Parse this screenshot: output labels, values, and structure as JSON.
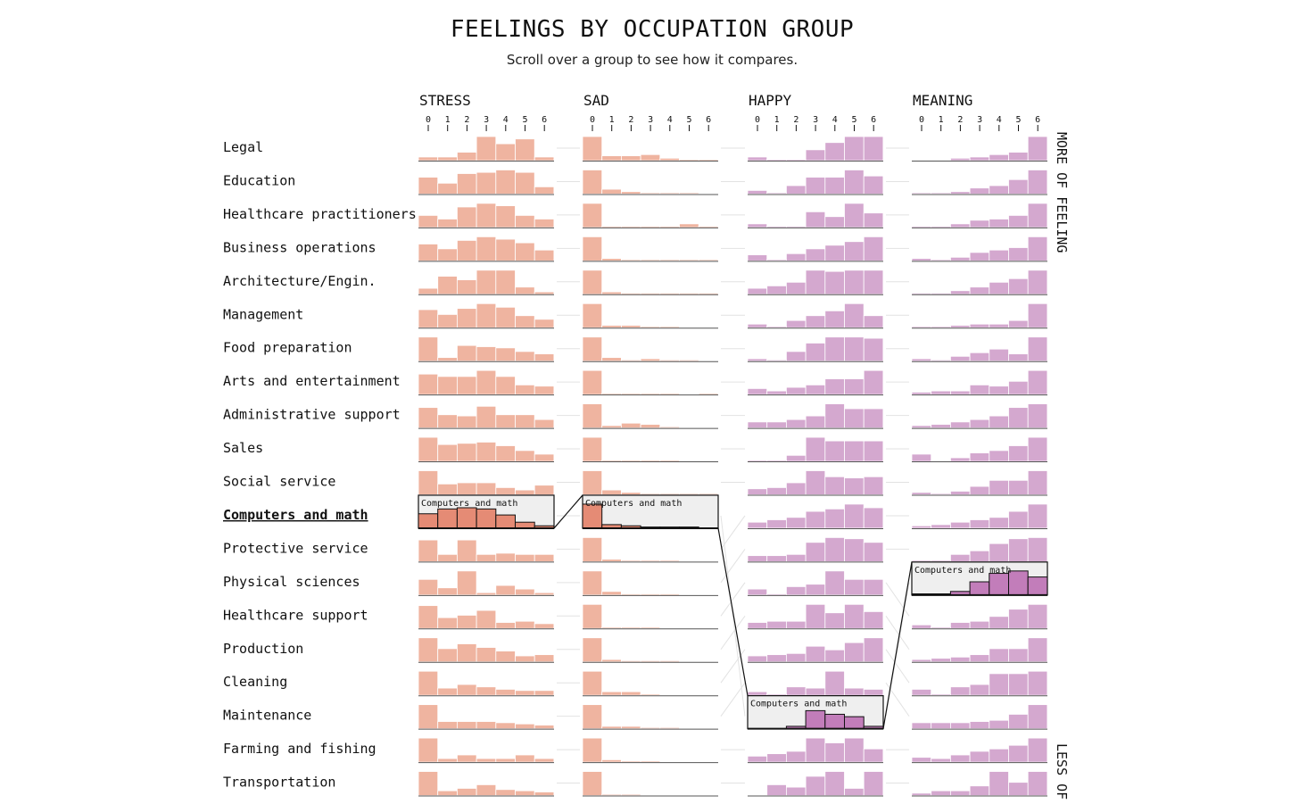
{
  "header": {
    "title": "FEELINGS BY OCCUPATION GROUP",
    "subtitle": "Scroll over a group to see how it compares."
  },
  "side_labels": {
    "top": "MORE OF FEELING",
    "bottom": "LESS OF"
  },
  "highlight": {
    "group": "Computers and math"
  },
  "colors": {
    "stress": "#efb4a0",
    "sad": "#efb4a0",
    "happy": "#d4a8cf",
    "meaning": "#d4a8cf",
    "stress_highlight": "#e58b75",
    "sad_highlight": "#e58b75",
    "happy_highlight": "#c27dba",
    "meaning_highlight": "#c27dba",
    "highlight_bg": "#efefef"
  },
  "chart_data": {
    "type": "bar",
    "x": [
      0,
      1,
      2,
      3,
      4,
      5,
      6
    ],
    "categories": [
      "Legal",
      "Education",
      "Healthcare practitioners",
      "Business operations",
      "Architecture/Engin.",
      "Management",
      "Food preparation",
      "Arts and entertainment",
      "Administrative support",
      "Sales",
      "Social service",
      "Computers and math",
      "Protective service",
      "Physical sciences",
      "Healthcare support",
      "Production",
      "Cleaning",
      "Maintenance",
      "Farming and fishing",
      "Transportation"
    ],
    "series": [
      {
        "name": "STRESS",
        "rank_order": [
          "Legal",
          "Education",
          "Healthcare practitioners",
          "Business operations",
          "Architecture/Engin.",
          "Management",
          "Food preparation",
          "Arts and entertainment",
          "Administrative support",
          "Sales",
          "Social service",
          "Computers and math",
          "Protective service",
          "Physical sciences",
          "Healthcare support",
          "Production",
          "Cleaning",
          "Maintenance",
          "Farming and fishing",
          "Transportation"
        ],
        "values": [
          [
            0.15,
            0.15,
            0.35,
            1.0,
            0.7,
            0.9,
            0.15
          ],
          [
            0.7,
            0.45,
            0.85,
            0.9,
            1.0,
            0.9,
            0.3
          ],
          [
            0.5,
            0.35,
            0.85,
            1.0,
            0.9,
            0.5,
            0.35
          ],
          [
            0.7,
            0.5,
            0.85,
            1.0,
            0.9,
            0.75,
            0.45
          ],
          [
            0.25,
            0.75,
            0.6,
            1.0,
            1.0,
            0.3,
            0.1
          ],
          [
            0.75,
            0.55,
            0.8,
            1.0,
            0.85,
            0.5,
            0.35
          ],
          [
            1.0,
            0.15,
            0.65,
            0.6,
            0.55,
            0.4,
            0.3
          ],
          [
            0.85,
            0.75,
            0.75,
            1.0,
            0.75,
            0.4,
            0.35
          ],
          [
            0.85,
            0.55,
            0.5,
            0.9,
            0.55,
            0.55,
            0.35
          ],
          [
            1.0,
            0.7,
            0.75,
            0.8,
            0.65,
            0.45,
            0.3
          ],
          [
            1.0,
            0.45,
            0.5,
            0.5,
            0.3,
            0.2,
            0.4
          ],
          [
            0.6,
            0.8,
            0.85,
            0.8,
            0.55,
            0.25,
            0.1
          ],
          [
            0.9,
            0.3,
            0.9,
            0.3,
            0.35,
            0.3,
            0.3
          ],
          [
            0.65,
            0.3,
            1.0,
            0.1,
            0.4,
            0.25,
            0.1
          ],
          [
            0.95,
            0.45,
            0.55,
            0.75,
            0.25,
            0.3,
            0.2
          ],
          [
            1.0,
            0.55,
            0.75,
            0.6,
            0.45,
            0.25,
            0.3
          ],
          [
            1.0,
            0.3,
            0.45,
            0.35,
            0.25,
            0.2,
            0.2
          ],
          [
            1.0,
            0.3,
            0.3,
            0.3,
            0.25,
            0.2,
            0.15
          ],
          [
            1.0,
            0.15,
            0.3,
            0.15,
            0.15,
            0.3,
            0.15
          ],
          [
            1.0,
            0.2,
            0.3,
            0.45,
            0.25,
            0.2,
            0.15
          ]
        ]
      },
      {
        "name": "SAD",
        "rank_order": [
          "Legal",
          "Education",
          "Healthcare practitioners",
          "Business operations",
          "Architecture/Engin.",
          "Management",
          "Food preparation",
          "Arts and entertainment",
          "Administrative support",
          "Sales",
          "Social service",
          "Computers and math",
          "Protective service",
          "Physical sciences",
          "Healthcare support",
          "Production",
          "Cleaning",
          "Maintenance",
          "Farming and fishing",
          "Transportation"
        ],
        "values": [
          [
            1.0,
            0.2,
            0.2,
            0.25,
            0.1,
            0.05,
            0.05
          ],
          [
            1.0,
            0.2,
            0.1,
            0.05,
            0.05,
            0.05,
            0.0
          ],
          [
            1.0,
            0.05,
            0.05,
            0.05,
            0.05,
            0.15,
            0.05
          ],
          [
            1.0,
            0.1,
            0.05,
            0.05,
            0.05,
            0.05,
            0.05
          ],
          [
            1.0,
            0.1,
            0.05,
            0.05,
            0.05,
            0.05,
            0.05
          ],
          [
            1.0,
            0.1,
            0.1,
            0.05,
            0.05,
            0.0,
            0.0
          ],
          [
            1.0,
            0.15,
            0.05,
            0.1,
            0.05,
            0.05,
            0.0
          ],
          [
            1.0,
            0.05,
            0.05,
            0.05,
            0.05,
            0.0,
            0.05
          ],
          [
            1.0,
            0.1,
            0.2,
            0.15,
            0.05,
            0.0,
            0.0
          ],
          [
            1.0,
            0.05,
            0.05,
            0.05,
            0.05,
            0.0,
            0.0
          ],
          [
            1.0,
            0.2,
            0.1,
            0.05,
            0.05,
            0.05,
            0.05
          ],
          [
            1.0,
            0.15,
            0.1,
            0.05,
            0.05,
            0.05,
            0.0
          ],
          [
            1.0,
            0.1,
            0.05,
            0.05,
            0.05,
            0.0,
            0.0
          ],
          [
            1.0,
            0.15,
            0.05,
            0.05,
            0.05,
            0.0,
            0.0
          ],
          [
            1.0,
            0.05,
            0.05,
            0.05,
            0.0,
            0.0,
            0.0
          ],
          [
            1.0,
            0.1,
            0.05,
            0.05,
            0.05,
            0.0,
            0.0
          ],
          [
            1.0,
            0.15,
            0.15,
            0.05,
            0.0,
            0.0,
            0.0
          ],
          [
            1.0,
            0.1,
            0.1,
            0.05,
            0.05,
            0.0,
            0.0
          ],
          [
            1.0,
            0.1,
            0.05,
            0.05,
            0.0,
            0.0,
            0.0
          ],
          [
            1.0,
            0.05,
            0.05,
            0.0,
            0.0,
            0.0,
            0.0
          ]
        ]
      },
      {
        "name": "HAPPY",
        "rank_order": [
          "Legal",
          "Education",
          "Healthcare practitioners",
          "Business operations",
          "Architecture/Engin.",
          "Management",
          "Food preparation",
          "Arts and entertainment",
          "Administrative support",
          "Sales",
          "Social service",
          "Protective service",
          "Physical sciences",
          "Healthcare support",
          "Production",
          "Cleaning",
          "Maintenance",
          "Computers and math",
          "Farming and fishing",
          "Transportation"
        ],
        "values": [
          [
            0.15,
            0.05,
            0.05,
            0.45,
            0.75,
            1.0,
            1.0
          ],
          [
            0.15,
            0.05,
            0.35,
            0.7,
            0.7,
            1.0,
            0.75
          ],
          [
            0.15,
            0.05,
            0.05,
            0.65,
            0.45,
            1.0,
            0.6
          ],
          [
            0.25,
            0.05,
            0.3,
            0.5,
            0.65,
            0.8,
            1.0
          ],
          [
            0.25,
            0.35,
            0.5,
            1.0,
            0.95,
            1.0,
            1.0
          ],
          [
            0.15,
            0.05,
            0.3,
            0.5,
            0.7,
            1.0,
            0.5
          ],
          [
            0.1,
            0.05,
            0.4,
            0.75,
            1.0,
            1.0,
            0.95
          ],
          [
            0.25,
            0.15,
            0.3,
            0.4,
            0.65,
            0.65,
            1.0
          ],
          [
            0.25,
            0.25,
            0.35,
            0.5,
            1.0,
            0.8,
            0.8
          ],
          [
            0.05,
            0.05,
            0.25,
            1.0,
            0.85,
            0.85,
            0.85
          ],
          [
            0.25,
            0.3,
            0.5,
            1.0,
            0.75,
            0.7,
            0.75
          ],
          [
            0.25,
            0.35,
            0.45,
            0.7,
            0.8,
            1.0,
            0.85
          ],
          [
            0.25,
            0.25,
            0.3,
            0.8,
            1.0,
            0.95,
            0.8
          ],
          [
            0.25,
            0.05,
            0.35,
            0.45,
            1.0,
            0.65,
            0.65
          ],
          [
            0.25,
            0.3,
            0.3,
            1.0,
            0.65,
            1.0,
            0.7
          ],
          [
            0.25,
            0.3,
            0.35,
            0.65,
            0.5,
            0.8,
            1.0
          ],
          [
            0.15,
            0.05,
            0.35,
            0.3,
            1.0,
            0.3,
            0.25
          ],
          [
            0.0,
            0.0,
            0.1,
            0.75,
            0.6,
            0.5,
            0.1
          ],
          [
            0.25,
            0.35,
            0.45,
            1.0,
            0.8,
            1.0,
            0.55
          ],
          [
            0.0,
            0.45,
            0.35,
            0.8,
            1.0,
            0.3,
            1.0
          ]
        ]
      },
      {
        "name": "MEANING",
        "rank_order": [
          "Legal",
          "Education",
          "Healthcare practitioners",
          "Business operations",
          "Architecture/Engin.",
          "Management",
          "Food preparation",
          "Arts and entertainment",
          "Administrative support",
          "Sales",
          "Social service",
          "Protective service",
          "Physical sciences",
          "Computers and math",
          "Healthcare support",
          "Production",
          "Cleaning",
          "Maintenance",
          "Farming and fishing",
          "Transportation"
        ],
        "values": [
          [
            0.0,
            0.0,
            0.1,
            0.15,
            0.25,
            0.35,
            1.0
          ],
          [
            0.05,
            0.05,
            0.1,
            0.25,
            0.35,
            0.6,
            1.0
          ],
          [
            0.05,
            0.05,
            0.15,
            0.3,
            0.35,
            0.5,
            1.0
          ],
          [
            0.1,
            0.05,
            0.15,
            0.35,
            0.45,
            0.55,
            1.0
          ],
          [
            0.05,
            0.05,
            0.15,
            0.3,
            0.5,
            0.65,
            1.0
          ],
          [
            0.05,
            0.05,
            0.1,
            0.15,
            0.15,
            0.3,
            1.0
          ],
          [
            0.1,
            0.05,
            0.2,
            0.35,
            0.5,
            0.3,
            1.0
          ],
          [
            0.1,
            0.15,
            0.15,
            0.4,
            0.35,
            0.55,
            1.0
          ],
          [
            0.1,
            0.15,
            0.25,
            0.35,
            0.5,
            0.85,
            1.0
          ],
          [
            0.3,
            0.0,
            0.15,
            0.35,
            0.45,
            0.65,
            1.0
          ],
          [
            0.1,
            0.05,
            0.15,
            0.35,
            0.6,
            0.6,
            1.0
          ],
          [
            0.1,
            0.15,
            0.25,
            0.35,
            0.45,
            0.7,
            1.0
          ],
          [
            0.05,
            0.05,
            0.3,
            0.45,
            0.75,
            0.95,
            1.0
          ],
          [
            0.05,
            0.05,
            0.15,
            0.55,
            0.9,
            1.0,
            0.75
          ],
          [
            0.15,
            0.05,
            0.25,
            0.3,
            0.5,
            0.8,
            1.0
          ],
          [
            0.1,
            0.15,
            0.2,
            0.3,
            0.55,
            0.55,
            1.0
          ],
          [
            0.25,
            0.05,
            0.35,
            0.45,
            0.9,
            0.9,
            1.0
          ],
          [
            0.25,
            0.25,
            0.25,
            0.3,
            0.35,
            0.6,
            1.0
          ],
          [
            0.2,
            0.15,
            0.3,
            0.45,
            0.55,
            0.7,
            1.0
          ],
          [
            0.1,
            0.2,
            0.2,
            0.4,
            1.0,
            0.55,
            1.0
          ]
        ]
      }
    ]
  }
}
